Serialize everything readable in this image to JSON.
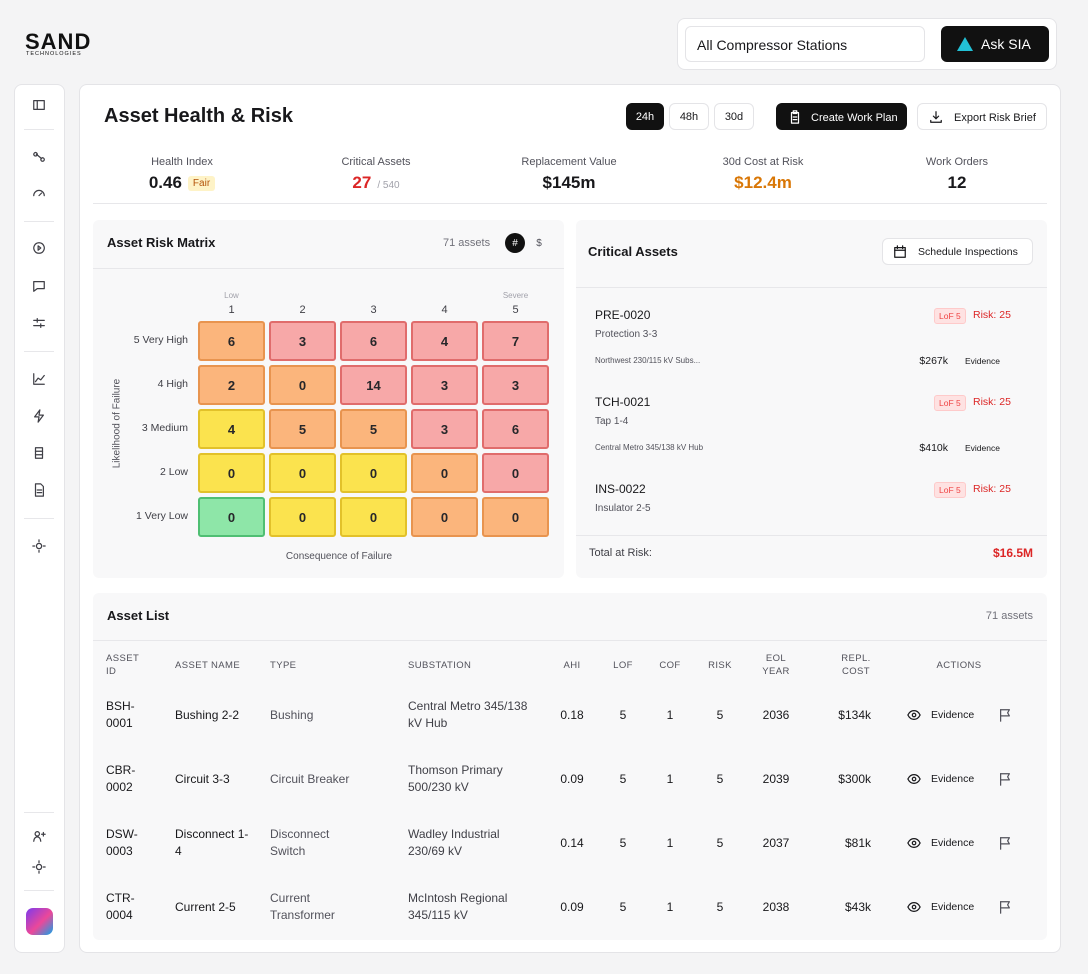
{
  "logo": {
    "name": "SAND",
    "tagline": "TECHNOLOGIES"
  },
  "header": {
    "station_filter": "All Compressor Stations",
    "ask_button": "Ask SIA"
  },
  "page": {
    "title": "Asset Health & Risk",
    "time_ranges": [
      "24h",
      "48h",
      "30d"
    ],
    "active_range": "24h",
    "actions": [
      "Create Work Plan",
      "Export Risk Brief"
    ]
  },
  "kpis": [
    {
      "label": "Health Index",
      "value": 0.46,
      "badge": "Fair"
    },
    {
      "label": "Critical Assets",
      "value": 27,
      "sub": "/ 540",
      "color": "#dc2626"
    },
    {
      "label": "Replacement Value",
      "value": "$145m"
    },
    {
      "label": "30d Cost at Risk",
      "value": "$12.4m",
      "color": "#d97706"
    },
    {
      "label": "Work Orders",
      "value": 12
    }
  ],
  "risk_matrix": {
    "title": "Asset Risk Matrix",
    "count": "71 assets",
    "toggles": [
      "#",
      "$"
    ],
    "active_toggle": "#",
    "columns": [
      {
        "label": 1,
        "hint": "Low"
      },
      {
        "label": 2
      },
      {
        "label": 3
      },
      {
        "label": 4
      },
      {
        "label": 5,
        "hint": "Severe"
      }
    ],
    "rows": [
      {
        "label": "5 Very High",
        "cells": [
          6,
          3,
          6,
          4,
          7
        ],
        "colors": [
          "#fbb57c",
          "#f7a8a8",
          "#f7a8a8",
          "#f7a8a8",
          "#f7a8a8"
        ]
      },
      {
        "label": "4 High",
        "cells": [
          2,
          0,
          14,
          3,
          3
        ],
        "colors": [
          "#fbb57c",
          "#fbb57c",
          "#f7a8a8",
          "#f7a8a8",
          "#f7a8a8"
        ]
      },
      {
        "label": "3 Medium",
        "cells": [
          4,
          5,
          5,
          3,
          6
        ],
        "colors": [
          "#fbe34e",
          "#fbb57c",
          "#fbb57c",
          "#f7a8a8",
          "#f7a8a8"
        ]
      },
      {
        "label": "2 Low",
        "cells": [
          0,
          0,
          0,
          0,
          0
        ],
        "colors": [
          "#fbe34e",
          "#fbe34e",
          "#fbe34e",
          "#fbb57c",
          "#f7a8a8"
        ]
      },
      {
        "label": "1 Very Low",
        "cells": [
          0,
          0,
          0,
          0,
          0
        ],
        "colors": [
          "#8ee6a8",
          "#fbe34e",
          "#fbe34e",
          "#fbb57c",
          "#fbb57c"
        ]
      }
    ],
    "y_axis_label": "Likelihood of Failure",
    "x_axis_label": "Consequence of Failure"
  },
  "critical_assets": {
    "title": "Critical Assets",
    "action": "Schedule Inspections",
    "items": [
      {
        "id": "PRE-0020",
        "name": "Protection 3-3",
        "lof": "LoF 5",
        "risk": "Risk: 25",
        "location": "Northwest 230/115 kV Subs...",
        "cost": "$267k",
        "evidence": "Evidence"
      },
      {
        "id": "TCH-0021",
        "name": "Tap 1-4",
        "lof": "LoF 5",
        "risk": "Risk: 25",
        "location": "Central Metro 345/138 kV Hub",
        "cost": "$410k",
        "evidence": "Evidence"
      },
      {
        "id": "INS-0022",
        "name": "Insulator 2-5",
        "lof": "LoF 5",
        "risk": "Risk: 25"
      }
    ],
    "total_label": "Total at Risk:",
    "total": "$16.5M"
  },
  "asset_list": {
    "title": "Asset List",
    "count": "71 assets",
    "columns": [
      "ASSET ID",
      "ASSET NAME",
      "TYPE",
      "SUBSTATION",
      "AHI",
      "LOF",
      "COF",
      "RISK",
      "EOL YEAR",
      "REPL. COST",
      "ACTIONS"
    ],
    "rows": [
      {
        "id": "BSH-0001",
        "name": "Bushing 2-2",
        "type": "Bushing",
        "substation": "Central Metro 345/138 kV Hub",
        "ahi": 0.18,
        "lof": 5,
        "cof": 1,
        "risk": 5,
        "eol_year": 2036,
        "repl_cost": "$134k",
        "action": "Evidence"
      },
      {
        "id": "CBR-0002",
        "name": "Circuit 3-3",
        "type": "Circuit Breaker",
        "substation": "Thomson Primary 500/230 kV",
        "ahi": 0.09,
        "lof": 5,
        "cof": 1,
        "risk": 5,
        "eol_year": 2039,
        "repl_cost": "$300k",
        "action": "Evidence"
      },
      {
        "id": "DSW-0003",
        "name": "Disconnect 1-4",
        "type": "Disconnect Switch",
        "substation": "Wadley Industrial 230/69 kV",
        "ahi": 0.14,
        "lof": 5,
        "cof": 1,
        "risk": 5,
        "eol_year": 2037,
        "repl_cost": "$81k",
        "action": "Evidence"
      },
      {
        "id": "CTR-0004",
        "name": "Current 2-5",
        "type": "Current Transformer",
        "substation": "McIntosh Regional 345/115 kV",
        "ahi": 0.09,
        "lof": 5,
        "cof": 1,
        "risk": 5,
        "eol_year": 2038,
        "repl_cost": "$43k",
        "action": "Evidence"
      }
    ]
  }
}
